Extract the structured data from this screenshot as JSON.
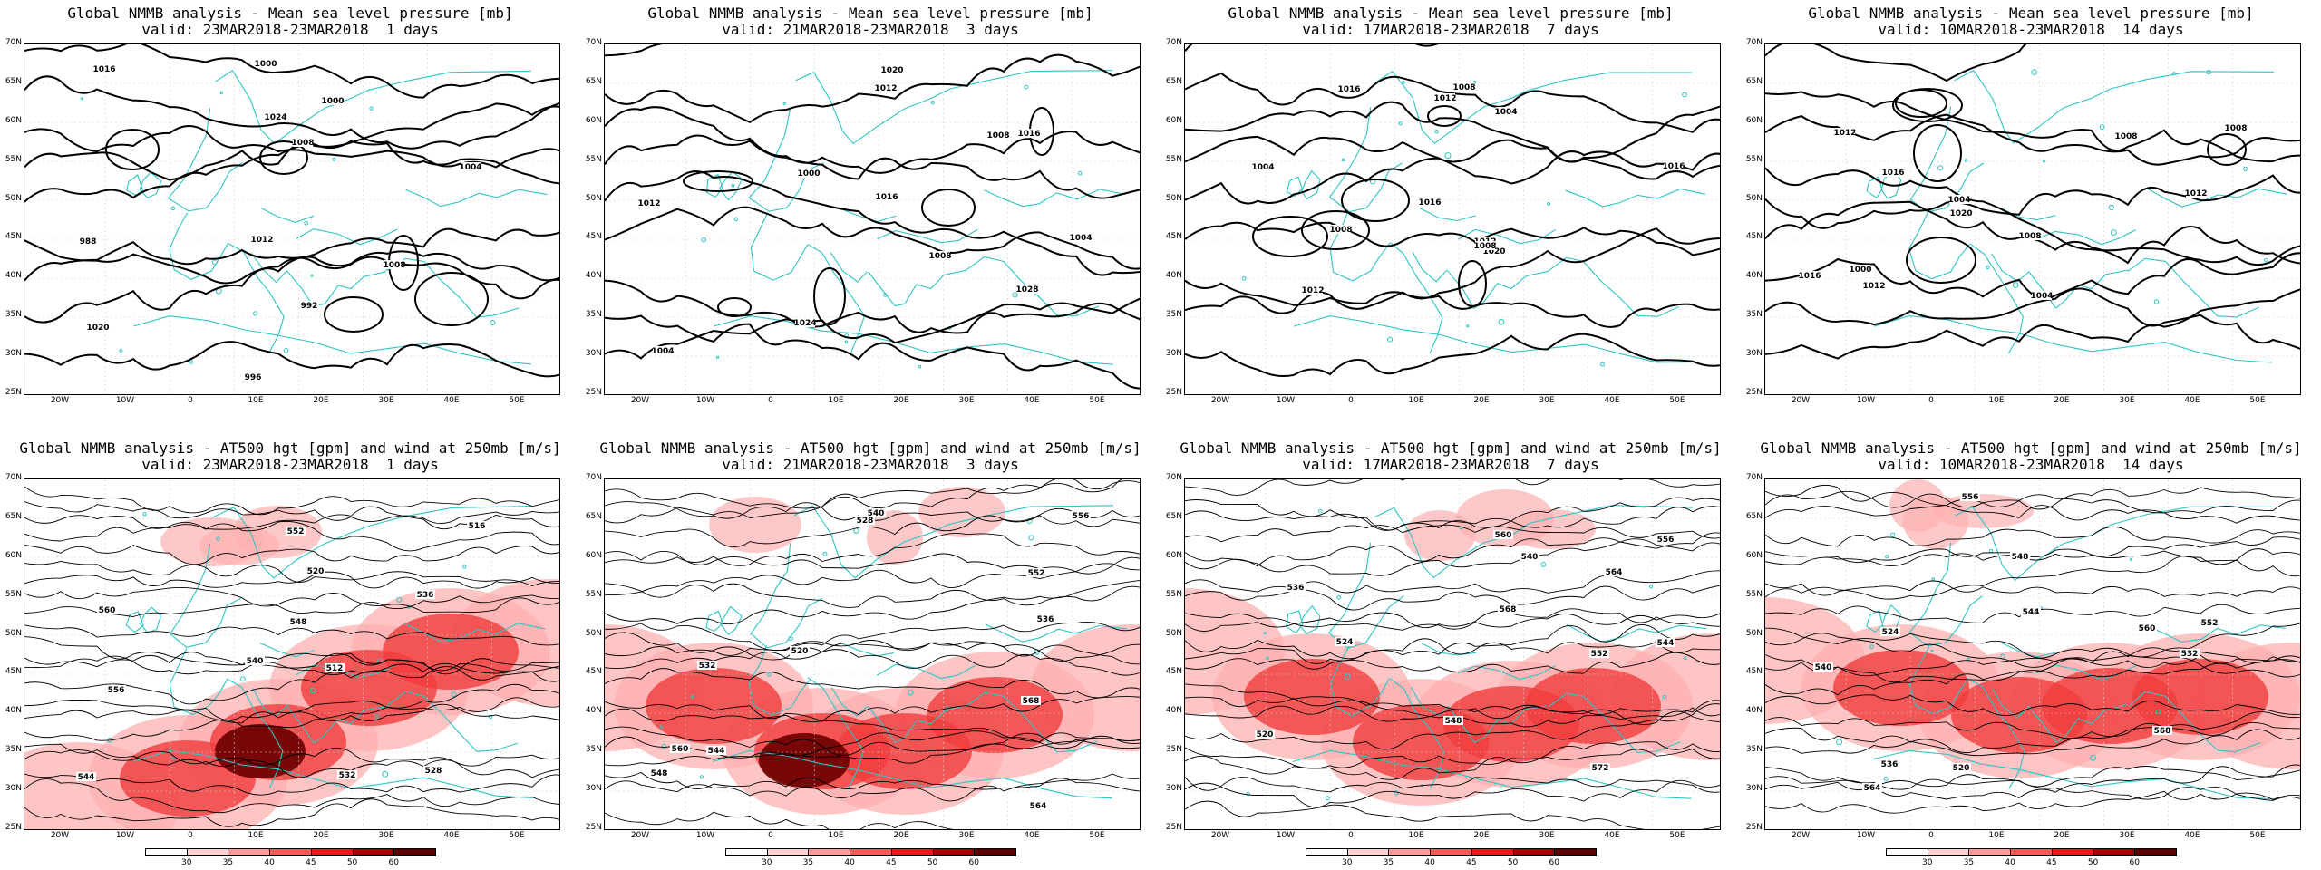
{
  "top_row": [
    {
      "title": "Global NMMB analysis - Mean sea level pressure [mb]",
      "valid": "valid: 23MAR2018-23MAR2018  1 days",
      "labels": [
        "1016",
        "1008",
        "1000",
        "992",
        "1004",
        "1012",
        "1020",
        "1024",
        "996",
        "988",
        "1000",
        "1008"
      ]
    },
    {
      "title": "Global NMMB analysis - Mean sea level pressure [mb]",
      "valid": "valid: 21MAR2018-23MAR2018  3 days",
      "labels": [
        "1008",
        "1004",
        "1012",
        "1016",
        "1020",
        "1024",
        "1028",
        "1000",
        "1004",
        "1012",
        "1016",
        "1008"
      ]
    },
    {
      "title": "Global NMMB analysis - Mean sea level pressure [mb]",
      "valid": "valid: 17MAR2018-23MAR2018  7 days",
      "labels": [
        "1016",
        "1012",
        "1004",
        "1008",
        "1012",
        "1016",
        "1020",
        "1008",
        "1012",
        "1016",
        "1004",
        "1008"
      ]
    },
    {
      "title": "Global NMMB analysis - Mean sea level pressure [mb]",
      "valid": "valid: 10MAR2018-23MAR2018  14 days",
      "labels": [
        "1000",
        "1012",
        "1008",
        "1004",
        "1012",
        "1016",
        "1020",
        "1012",
        "1016",
        "1008",
        "1004",
        "1008"
      ]
    }
  ],
  "bottom_row": [
    {
      "title": "Global NMMB analysis - AT500 hgt [gpm] and wind at 250mb [m/s]",
      "valid": "valid: 23MAR2018-23MAR2018  1 days",
      "labels": [
        "528",
        "532",
        "536",
        "548",
        "552",
        "556",
        "560",
        "544",
        "520",
        "516",
        "512",
        "540"
      ]
    },
    {
      "title": "Global NMMB analysis - AT500 hgt [gpm] and wind at 250mb [m/s]",
      "valid": "valid: 21MAR2018-23MAR2018  3 days",
      "labels": [
        "528",
        "532",
        "536",
        "540",
        "544",
        "548",
        "552",
        "556",
        "560",
        "564",
        "568",
        "520"
      ]
    },
    {
      "title": "Global NMMB analysis - AT500 hgt [gpm] and wind at 250mb [m/s]",
      "valid": "valid: 17MAR2018-23MAR2018  7 days",
      "labels": [
        "536",
        "540",
        "544",
        "548",
        "552",
        "556",
        "560",
        "564",
        "568",
        "572",
        "520",
        "524"
      ]
    },
    {
      "title": "Global NMMB analysis - AT500 hgt [gpm] and wind at 250mb [m/s]",
      "valid": "valid: 10MAR2018-23MAR2018  14 days",
      "labels": [
        "532",
        "536",
        "540",
        "544",
        "548",
        "552",
        "556",
        "560",
        "564",
        "568",
        "520",
        "524"
      ]
    }
  ],
  "lat_labels": [
    "70N",
    "65N",
    "60N",
    "55N",
    "50N",
    "45N",
    "40N",
    "35N",
    "30N",
    "25N"
  ],
  "lon_labels": [
    "20W",
    "10W",
    "0",
    "10E",
    "20E",
    "30E",
    "40E",
    "50E"
  ],
  "colorbar": {
    "ticks": [
      "30",
      "35",
      "40",
      "45",
      "50",
      "60"
    ],
    "colors": [
      "#ffffff",
      "#ffd0d0",
      "#ff9a9a",
      "#ff5a5a",
      "#e41a1a",
      "#a00000",
      "#5a0000"
    ]
  },
  "colors": {
    "coast": "#2ec4c4",
    "isobar": "#000000",
    "wind_low": "#ffb0b0",
    "wind_mid": "#f03c3c",
    "wind_high": "#6a0000"
  }
}
